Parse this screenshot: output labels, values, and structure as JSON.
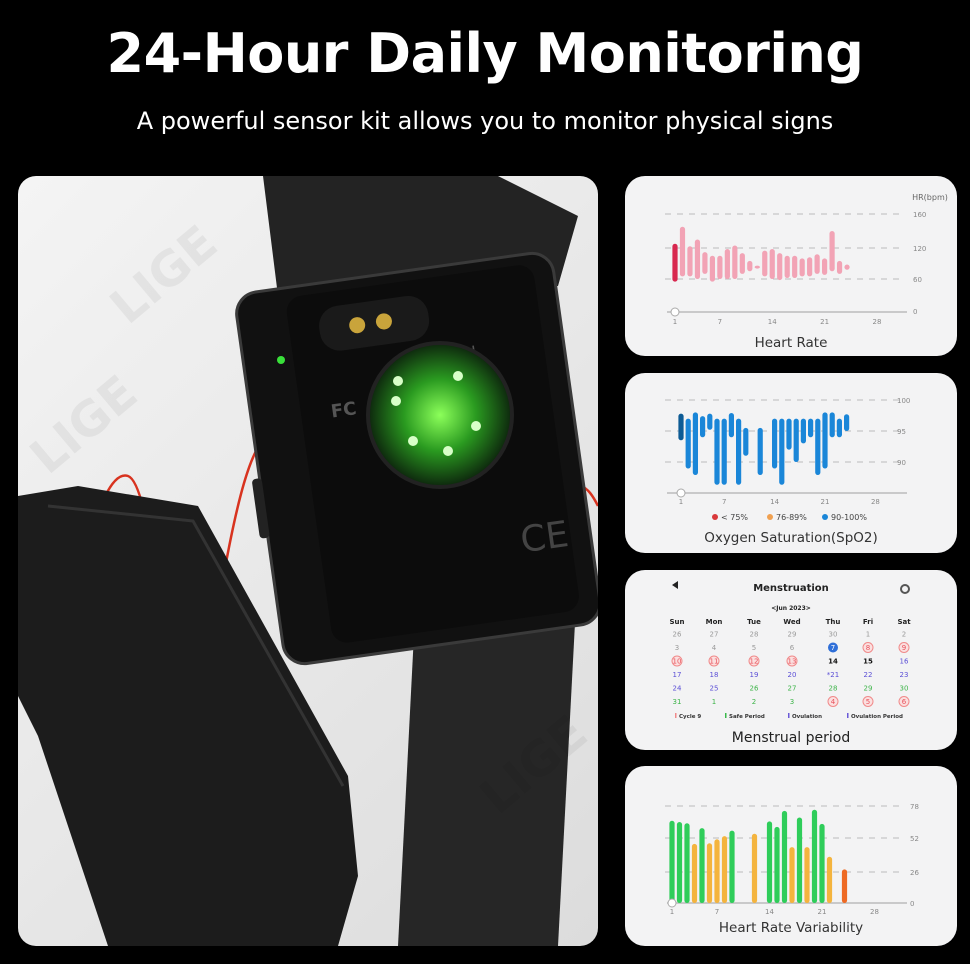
{
  "header": {
    "title": "24-Hour Daily Monitoring",
    "subtitle": "A powerful sensor kit allows you to monitor physical signs"
  },
  "watermark": "LIGE",
  "device": {
    "markings": [
      "RoH",
      "FC",
      "CE"
    ],
    "led_color": "#39e03a"
  },
  "colors": {
    "background": "#000000",
    "card": "#f3f3f4",
    "hr": "#f2a3b5",
    "hr_selected": "#d8284f",
    "spo2": "#1a86d8",
    "spo2_selected": "#0d5b95",
    "hrv_good": "#2fcd5a",
    "hrv_mid": "#f4b43e",
    "hrv_low": "#ee6a24"
  },
  "chart_data": [
    {
      "type": "bar",
      "title": "Heart Rate",
      "ylabel": "HR(bpm)",
      "range_bars": true,
      "yticks": [
        0,
        60,
        120,
        160
      ],
      "xticks": [
        1,
        7,
        14,
        21,
        28
      ],
      "ylim": [
        0,
        160
      ],
      "grid": true,
      "bars": [
        [
          1,
          55,
          125
        ],
        [
          2,
          65,
          145
        ],
        [
          3,
          65,
          122
        ],
        [
          4,
          60,
          130
        ],
        [
          5,
          70,
          112
        ],
        [
          6,
          55,
          105
        ],
        [
          7,
          60,
          105
        ],
        [
          8,
          60,
          118
        ],
        [
          9,
          60,
          123
        ],
        [
          10,
          70,
          110
        ],
        [
          11,
          75,
          95
        ],
        [
          12,
          82,
          86
        ],
        [
          13,
          65,
          115
        ],
        [
          14,
          60,
          118
        ],
        [
          15,
          58,
          110
        ],
        [
          16,
          62,
          105
        ],
        [
          17,
          62,
          105
        ],
        [
          18,
          65,
          100
        ],
        [
          19,
          65,
          102
        ],
        [
          20,
          70,
          108
        ],
        [
          21,
          68,
          100
        ],
        [
          22,
          75,
          140
        ],
        [
          23,
          70,
          95
        ],
        [
          24,
          78,
          88
        ]
      ],
      "selected_day": 1
    },
    {
      "type": "bar",
      "title": "Oxygen Saturation(SpO2)",
      "range_bars": true,
      "yticks": [
        90,
        95,
        100
      ],
      "xticks": [
        1,
        7,
        14,
        21,
        28
      ],
      "ylim": [
        86,
        100
      ],
      "grid": true,
      "bars": [
        [
          1,
          93.5,
          97.8
        ],
        [
          2,
          89,
          97
        ],
        [
          3,
          88,
          98
        ],
        [
          4,
          94,
          97.4
        ],
        [
          5,
          95.2,
          97.8
        ],
        [
          6,
          86.5,
          97
        ],
        [
          7,
          86.5,
          97
        ],
        [
          8,
          94,
          97.9
        ],
        [
          9,
          86.5,
          97
        ],
        [
          10,
          91,
          95.5
        ],
        [
          12,
          88,
          95.5
        ],
        [
          14,
          89,
          97
        ],
        [
          15,
          86.5,
          97
        ],
        [
          16,
          92,
          97
        ],
        [
          17,
          90,
          97
        ],
        [
          18,
          93,
          97
        ],
        [
          19,
          94,
          97
        ],
        [
          20,
          88,
          97
        ],
        [
          21,
          89,
          98
        ],
        [
          22,
          94,
          98
        ],
        [
          23,
          94,
          97
        ],
        [
          24,
          95,
          97.7
        ]
      ],
      "selected_day": 1,
      "legend": [
        {
          "label": "< 75%",
          "color": "#d9383a"
        },
        {
          "label": "76-89%",
          "color": "#f0a050"
        },
        {
          "label": "90-100%",
          "color": "#1a86d8"
        }
      ]
    },
    {
      "type": "bar",
      "title": "Heart Rate Variability",
      "yticks": [
        0,
        26,
        52,
        78
      ],
      "xticks": [
        1,
        7,
        14,
        21,
        28
      ],
      "ylim": [
        0,
        78
      ],
      "grid": true,
      "bars": [
        [
          1,
          66,
          "good"
        ],
        [
          2,
          65,
          "good"
        ],
        [
          3,
          64,
          "good"
        ],
        [
          4,
          47.5,
          "mid"
        ],
        [
          5,
          60,
          "good"
        ],
        [
          6,
          48,
          "mid"
        ],
        [
          7,
          51,
          "mid"
        ],
        [
          8,
          53.5,
          "mid"
        ],
        [
          9,
          58,
          "good"
        ],
        [
          12,
          55.5,
          "mid"
        ],
        [
          14,
          65.5,
          "good"
        ],
        [
          15,
          61,
          "good"
        ],
        [
          16,
          74,
          "good"
        ],
        [
          17,
          45,
          "mid"
        ],
        [
          18,
          68.7,
          "good"
        ],
        [
          19,
          45,
          "mid"
        ],
        [
          20,
          75,
          "good"
        ],
        [
          21,
          63.5,
          "good"
        ],
        [
          22,
          37.7,
          "mid"
        ],
        [
          24,
          28,
          "low"
        ]
      ]
    }
  ],
  "calendar": {
    "caption": "Menstrual period",
    "title": "Menstruation",
    "month": "<Jun 2023>",
    "back_icon": "back-arrow-icon",
    "settings_icon": "settings-icon",
    "weekdays": [
      "Sun",
      "Mon",
      "Tue",
      "Wed",
      "Thu",
      "Fri",
      "Sat"
    ],
    "weeks": [
      [
        [
          "26",
          "other"
        ],
        [
          "27",
          "other"
        ],
        [
          "28",
          "other"
        ],
        [
          "29",
          "other"
        ],
        [
          "30",
          "other"
        ],
        [
          "1",
          "other"
        ],
        [
          "2",
          "other"
        ]
      ],
      [
        [
          "3",
          "other"
        ],
        [
          "4",
          "other"
        ],
        [
          "5",
          "other"
        ],
        [
          "6",
          "other"
        ],
        [
          "7",
          "today"
        ],
        [
          "8",
          "period"
        ],
        [
          "9",
          "period"
        ]
      ],
      [
        [
          "10",
          "period"
        ],
        [
          "11",
          "period"
        ],
        [
          "12",
          "period"
        ],
        [
          "13",
          "period"
        ],
        [
          "14",
          "normal"
        ],
        [
          "15",
          "normal"
        ],
        [
          "16",
          "ovulation"
        ]
      ],
      [
        [
          "17",
          "ovulation"
        ],
        [
          "18",
          "ovulation"
        ],
        [
          "19",
          "ovulation"
        ],
        [
          "20",
          "ovulation"
        ],
        [
          "*21",
          "ovulation"
        ],
        [
          "22",
          "ovulation"
        ],
        [
          "23",
          "ovulation"
        ]
      ],
      [
        [
          "24",
          "ovulation"
        ],
        [
          "25",
          "ovulation"
        ],
        [
          "26",
          "safe"
        ],
        [
          "27",
          "safe"
        ],
        [
          "28",
          "safe"
        ],
        [
          "29",
          "safe"
        ],
        [
          "30",
          "safe"
        ]
      ],
      [
        [
          "31",
          "safe"
        ],
        [
          "1",
          "safe"
        ],
        [
          "2",
          "safe"
        ],
        [
          "3",
          "safe"
        ],
        [
          "4",
          "period"
        ],
        [
          "5",
          "period"
        ],
        [
          "6",
          "period"
        ]
      ]
    ],
    "legend": [
      {
        "label": "Cycle 9",
        "color": "#f08a8a"
      },
      {
        "label": "Safe Period",
        "color": "#38b84a"
      },
      {
        "label": "Ovulation",
        "color": "#6a5ad8"
      },
      {
        "label": "Ovulation Period",
        "color": "#6a5ad8"
      }
    ]
  }
}
